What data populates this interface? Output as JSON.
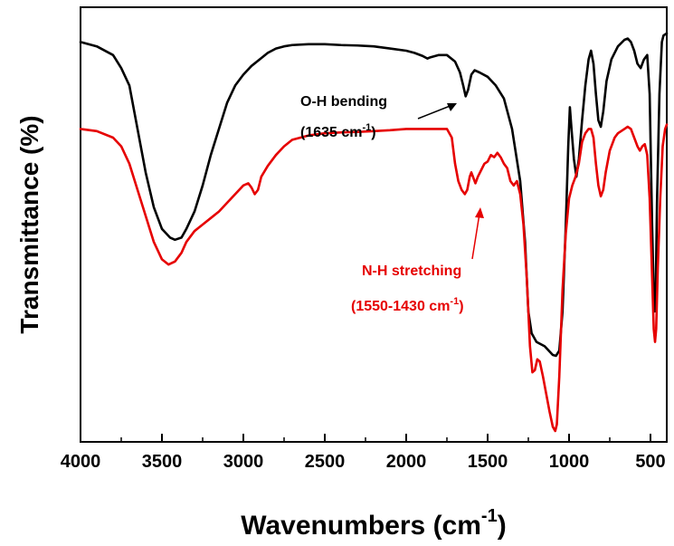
{
  "chart_data": {
    "type": "line",
    "xlabel": "Wavenumbers (cm",
    "xlabel_sup": "-1",
    "xlabel_close": ")",
    "ylabel": "Transmittance (%)",
    "xlim": [
      4000,
      400
    ],
    "x_reversed": true,
    "ylim": [
      0,
      100
    ],
    "y_ticks_shown": false,
    "x_ticks": [
      4000,
      3500,
      3000,
      2500,
      2000,
      1500,
      1000,
      500
    ],
    "x_tick_labels": [
      "4000",
      "3500",
      "3000",
      "2500",
      "2000",
      "1500",
      "1000",
      "500"
    ],
    "grid": false,
    "series": [
      {
        "color": "#000000",
        "points": [
          [
            4000,
            92
          ],
          [
            3900,
            91
          ],
          [
            3800,
            89
          ],
          [
            3750,
            86
          ],
          [
            3700,
            82
          ],
          [
            3650,
            72
          ],
          [
            3600,
            62
          ],
          [
            3550,
            54
          ],
          [
            3500,
            49
          ],
          [
            3450,
            47
          ],
          [
            3420,
            46.5
          ],
          [
            3380,
            47
          ],
          [
            3350,
            49
          ],
          [
            3300,
            53
          ],
          [
            3250,
            59
          ],
          [
            3200,
            66
          ],
          [
            3150,
            72
          ],
          [
            3100,
            78
          ],
          [
            3050,
            82
          ],
          [
            3000,
            84.5
          ],
          [
            2950,
            86.5
          ],
          [
            2900,
            88
          ],
          [
            2850,
            89.5
          ],
          [
            2800,
            90.5
          ],
          [
            2750,
            91
          ],
          [
            2700,
            91.3
          ],
          [
            2600,
            91.5
          ],
          [
            2500,
            91.5
          ],
          [
            2400,
            91.3
          ],
          [
            2300,
            91.2
          ],
          [
            2200,
            91
          ],
          [
            2100,
            90.5
          ],
          [
            2000,
            90
          ],
          [
            1950,
            89.5
          ],
          [
            1900,
            88.8
          ],
          [
            1870,
            88.2
          ],
          [
            1850,
            88.5
          ],
          [
            1800,
            89
          ],
          [
            1750,
            89
          ],
          [
            1700,
            87.5
          ],
          [
            1670,
            85
          ],
          [
            1650,
            82
          ],
          [
            1635,
            79.5
          ],
          [
            1620,
            81
          ],
          [
            1600,
            84.5
          ],
          [
            1580,
            85.5
          ],
          [
            1550,
            85
          ],
          [
            1500,
            84
          ],
          [
            1450,
            82
          ],
          [
            1400,
            79
          ],
          [
            1350,
            72
          ],
          [
            1300,
            60
          ],
          [
            1270,
            46
          ],
          [
            1250,
            30
          ],
          [
            1230,
            25
          ],
          [
            1200,
            23
          ],
          [
            1150,
            22
          ],
          [
            1100,
            20
          ],
          [
            1080,
            19.8
          ],
          [
            1060,
            21
          ],
          [
            1040,
            30
          ],
          [
            1020,
            50
          ],
          [
            1005,
            68
          ],
          [
            995,
            77
          ],
          [
            985,
            72
          ],
          [
            970,
            65
          ],
          [
            955,
            61
          ],
          [
            940,
            65
          ],
          [
            920,
            74
          ],
          [
            900,
            82
          ],
          [
            880,
            88
          ],
          [
            865,
            90
          ],
          [
            850,
            87
          ],
          [
            835,
            80
          ],
          [
            820,
            74
          ],
          [
            805,
            72.5
          ],
          [
            790,
            76
          ],
          [
            770,
            83
          ],
          [
            740,
            88
          ],
          [
            700,
            91
          ],
          [
            660,
            92.5
          ],
          [
            640,
            92.8
          ],
          [
            620,
            92
          ],
          [
            600,
            90
          ],
          [
            580,
            87
          ],
          [
            560,
            86
          ],
          [
            540,
            88
          ],
          [
            520,
            89
          ],
          [
            505,
            80
          ],
          [
            490,
            50
          ],
          [
            480,
            34
          ],
          [
            475,
            30
          ],
          [
            468,
            34
          ],
          [
            460,
            55
          ],
          [
            445,
            80
          ],
          [
            430,
            92
          ],
          [
            420,
            93.5
          ],
          [
            400,
            94
          ]
        ]
      },
      {
        "color": "#e60000",
        "points": [
          [
            4000,
            72
          ],
          [
            3900,
            71.5
          ],
          [
            3800,
            70
          ],
          [
            3750,
            68
          ],
          [
            3700,
            64
          ],
          [
            3650,
            58
          ],
          [
            3600,
            52
          ],
          [
            3550,
            46
          ],
          [
            3500,
            42
          ],
          [
            3460,
            40.8
          ],
          [
            3420,
            41.5
          ],
          [
            3380,
            43.5
          ],
          [
            3350,
            46
          ],
          [
            3300,
            48.5
          ],
          [
            3250,
            50
          ],
          [
            3200,
            51.5
          ],
          [
            3150,
            53
          ],
          [
            3100,
            55
          ],
          [
            3050,
            57
          ],
          [
            3000,
            59
          ],
          [
            2970,
            59.5
          ],
          [
            2950,
            58.5
          ],
          [
            2930,
            57
          ],
          [
            2910,
            58
          ],
          [
            2890,
            61
          ],
          [
            2850,
            63.5
          ],
          [
            2800,
            66
          ],
          [
            2750,
            68
          ],
          [
            2700,
            69.5
          ],
          [
            2600,
            70.5
          ],
          [
            2500,
            71
          ],
          [
            2400,
            71.2
          ],
          [
            2300,
            71.3
          ],
          [
            2200,
            71.5
          ],
          [
            2100,
            71.7
          ],
          [
            2000,
            72
          ],
          [
            1900,
            72
          ],
          [
            1800,
            72
          ],
          [
            1750,
            72
          ],
          [
            1720,
            70
          ],
          [
            1700,
            64
          ],
          [
            1680,
            60
          ],
          [
            1660,
            58
          ],
          [
            1640,
            57
          ],
          [
            1625,
            58
          ],
          [
            1610,
            61
          ],
          [
            1600,
            62
          ],
          [
            1590,
            61
          ],
          [
            1575,
            59.5
          ],
          [
            1560,
            61
          ],
          [
            1540,
            62.5
          ],
          [
            1520,
            64
          ],
          [
            1500,
            64.5
          ],
          [
            1480,
            66
          ],
          [
            1460,
            65.5
          ],
          [
            1440,
            66.5
          ],
          [
            1420,
            65.5
          ],
          [
            1400,
            64
          ],
          [
            1380,
            63
          ],
          [
            1360,
            60
          ],
          [
            1340,
            59
          ],
          [
            1320,
            60
          ],
          [
            1300,
            57
          ],
          [
            1280,
            50
          ],
          [
            1260,
            38
          ],
          [
            1240,
            22
          ],
          [
            1225,
            16
          ],
          [
            1210,
            16.5
          ],
          [
            1195,
            19
          ],
          [
            1180,
            18.5
          ],
          [
            1160,
            15
          ],
          [
            1140,
            11
          ],
          [
            1120,
            7
          ],
          [
            1100,
            3.5
          ],
          [
            1085,
            2.5
          ],
          [
            1075,
            4
          ],
          [
            1060,
            15
          ],
          [
            1040,
            35
          ],
          [
            1020,
            48
          ],
          [
            1000,
            56
          ],
          [
            980,
            59
          ],
          [
            960,
            61
          ],
          [
            940,
            64
          ],
          [
            920,
            69
          ],
          [
            900,
            71
          ],
          [
            880,
            72
          ],
          [
            865,
            72
          ],
          [
            850,
            70
          ],
          [
            835,
            64
          ],
          [
            820,
            59
          ],
          [
            805,
            56.5
          ],
          [
            790,
            58
          ],
          [
            775,
            62
          ],
          [
            750,
            67
          ],
          [
            720,
            70
          ],
          [
            700,
            71
          ],
          [
            680,
            71.5
          ],
          [
            660,
            72
          ],
          [
            640,
            72.5
          ],
          [
            620,
            72
          ],
          [
            600,
            70
          ],
          [
            580,
            68
          ],
          [
            565,
            67
          ],
          [
            550,
            68
          ],
          [
            535,
            68.5
          ],
          [
            520,
            66
          ],
          [
            505,
            56
          ],
          [
            490,
            38
          ],
          [
            480,
            26
          ],
          [
            472,
            23
          ],
          [
            465,
            26
          ],
          [
            455,
            40
          ],
          [
            440,
            56
          ],
          [
            425,
            68
          ],
          [
            410,
            72
          ],
          [
            400,
            73
          ]
        ]
      }
    ],
    "annotations": [
      {
        "color": "#000000",
        "line1": "O-H bending",
        "line2_pre": "(1635 cm",
        "line2_sup": "-1",
        "line2_post": ")"
      },
      {
        "color": "#e60000",
        "line1": "N-H stretching",
        "line2_pre": "(1550-1430 cm",
        "line2_sup": "-1",
        "line2_post": ")"
      }
    ]
  }
}
